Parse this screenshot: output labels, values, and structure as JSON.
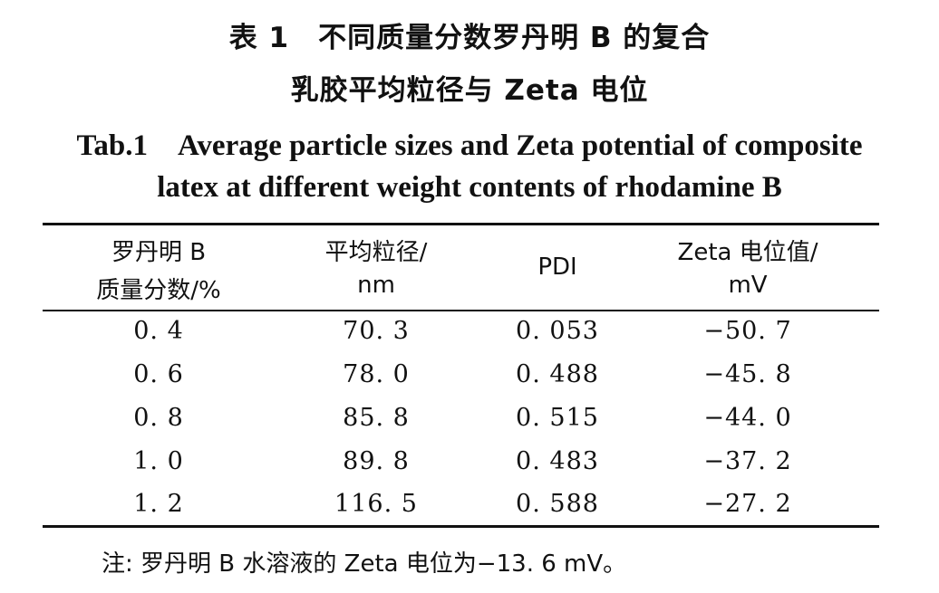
{
  "caption": {
    "cn_line1": "表 1　不同质量分数罗丹明 B 的复合",
    "cn_line2": "乳胶平均粒径与 Zeta 电位",
    "en_line1": "Tab.1　Average particle sizes and Zeta potential of composite",
    "en_line2": "latex at different weight contents of rhodamine B"
  },
  "table": {
    "headers": [
      {
        "line1": "罗丹明 B",
        "line2": "质量分数/%"
      },
      {
        "line1": "平均粒径/",
        "line2": "nm"
      },
      {
        "line1": "PDI",
        "line2": ""
      },
      {
        "line1": "Zeta 电位值/",
        "line2": "mV"
      }
    ],
    "rows": [
      [
        "0. 4",
        "70. 3",
        "0. 053",
        "−50. 7"
      ],
      [
        "0. 6",
        "78. 0",
        "0. 488",
        "−45. 8"
      ],
      [
        "0. 8",
        "85. 8",
        "0. 515",
        "−44. 0"
      ],
      [
        "1. 0",
        "89. 8",
        "0. 483",
        "−37. 2"
      ],
      [
        "1. 2",
        "116. 5",
        "0. 588",
        "−27. 2"
      ]
    ]
  },
  "note": "注: 罗丹明 B 水溶液的 Zeta 电位为−13. 6 mV。"
}
